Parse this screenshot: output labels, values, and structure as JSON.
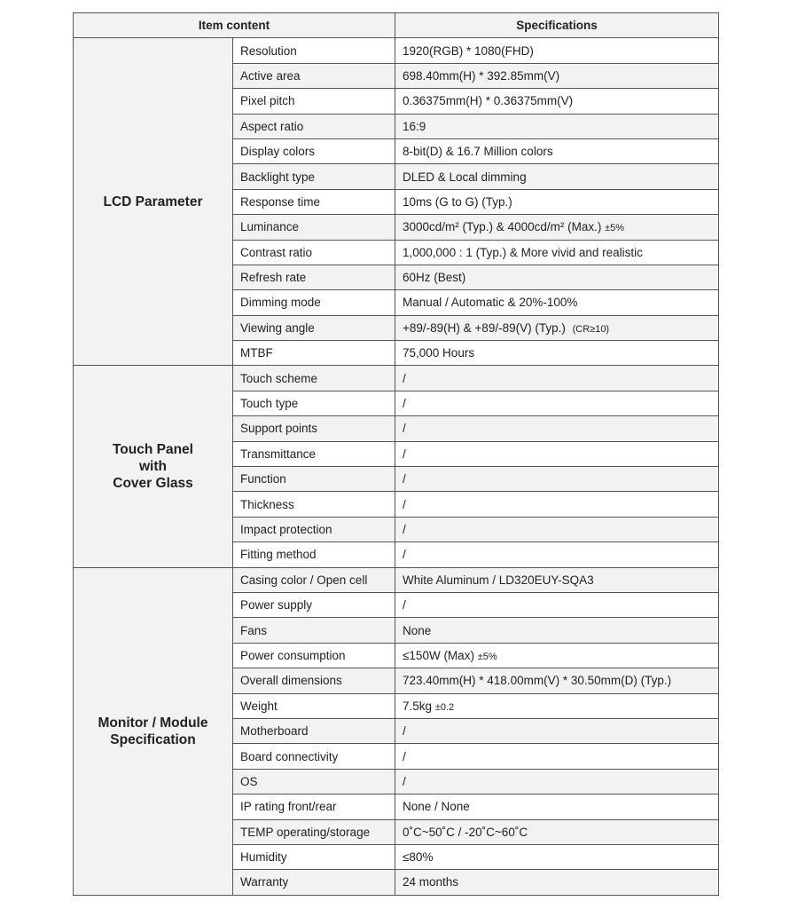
{
  "header": {
    "item_content": "Item content",
    "specifications": "Specifications"
  },
  "groups": [
    {
      "title": "LCD Parameter",
      "rows": [
        {
          "item": "Resolution",
          "spec": "1920(RGB) * 1080(FHD)"
        },
        {
          "item": "Active area",
          "spec": "698.40mm(H) * 392.85mm(V)"
        },
        {
          "item": "Pixel pitch",
          "spec": "0.36375mm(H) * 0.36375mm(V)"
        },
        {
          "item": "Aspect ratio",
          "spec": "16:9"
        },
        {
          "item": "Display colors",
          "spec": "8-bit(D) & 16.7 Million colors"
        },
        {
          "item": "Backlight type",
          "spec": "DLED & Local dimming"
        },
        {
          "item": "Response time",
          "spec": "10ms (G to G) (Typ.)"
        },
        {
          "item": "Luminance",
          "spec": "3000cd/m² (Typ.) & 4000cd/m² (Max.)",
          "note": "±5%"
        },
        {
          "item": "Contrast ratio",
          "spec": "1,000,000 : 1 (Typ.) & More vivid and realistic"
        },
        {
          "item": "Refresh rate",
          "spec": "60Hz (Best)"
        },
        {
          "item": "Dimming mode",
          "spec": "Manual / Automatic & 20%-100%"
        },
        {
          "item": "Viewing angle",
          "spec": "+89/-89(H) & +89/-89(V) (Typ.)",
          "note": "(CR≥10)"
        },
        {
          "item": "MTBF",
          "spec": "75,000 Hours"
        }
      ]
    },
    {
      "title": "Touch Panel\nwith\nCover Glass",
      "rows": [
        {
          "item": "Touch scheme",
          "spec": "/"
        },
        {
          "item": "Touch type",
          "spec": "/"
        },
        {
          "item": "Support points",
          "spec": "/"
        },
        {
          "item": "Transmittance",
          "spec": "/"
        },
        {
          "item": "Function",
          "spec": "/"
        },
        {
          "item": "Thickness",
          "spec": "/"
        },
        {
          "item": "Impact protection",
          "spec": "/"
        },
        {
          "item": "Fitting method",
          "spec": "/"
        }
      ]
    },
    {
      "title": "Monitor / Module\nSpecification",
      "rows": [
        {
          "item": "Casing color / Open cell",
          "spec": "White Aluminum / LD320EUY-SQA3"
        },
        {
          "item": "Power supply",
          "spec": "/"
        },
        {
          "item": "Fans",
          "spec": "None"
        },
        {
          "item": "Power consumption",
          "spec": "≤150W (Max)",
          "note": "±5%"
        },
        {
          "item": "Overall dimensions",
          "spec": "723.40mm(H) * 418.00mm(V) * 30.50mm(D) (Typ.)"
        },
        {
          "item": "Weight",
          "spec": "7.5kg",
          "note": "±0.2"
        },
        {
          "item": "Motherboard",
          "spec": "/"
        },
        {
          "item": "Board connectivity",
          "spec": "/"
        },
        {
          "item": "OS",
          "spec": "/"
        },
        {
          "item": "IP rating front/rear",
          "spec": "None / None"
        },
        {
          "item": "TEMP operating/storage",
          "spec": "0˚C~50˚C / -20˚C~60˚C"
        },
        {
          "item": "Humidity",
          "spec": "≤80%"
        },
        {
          "item": "Warranty",
          "spec": "24 months"
        }
      ]
    }
  ]
}
